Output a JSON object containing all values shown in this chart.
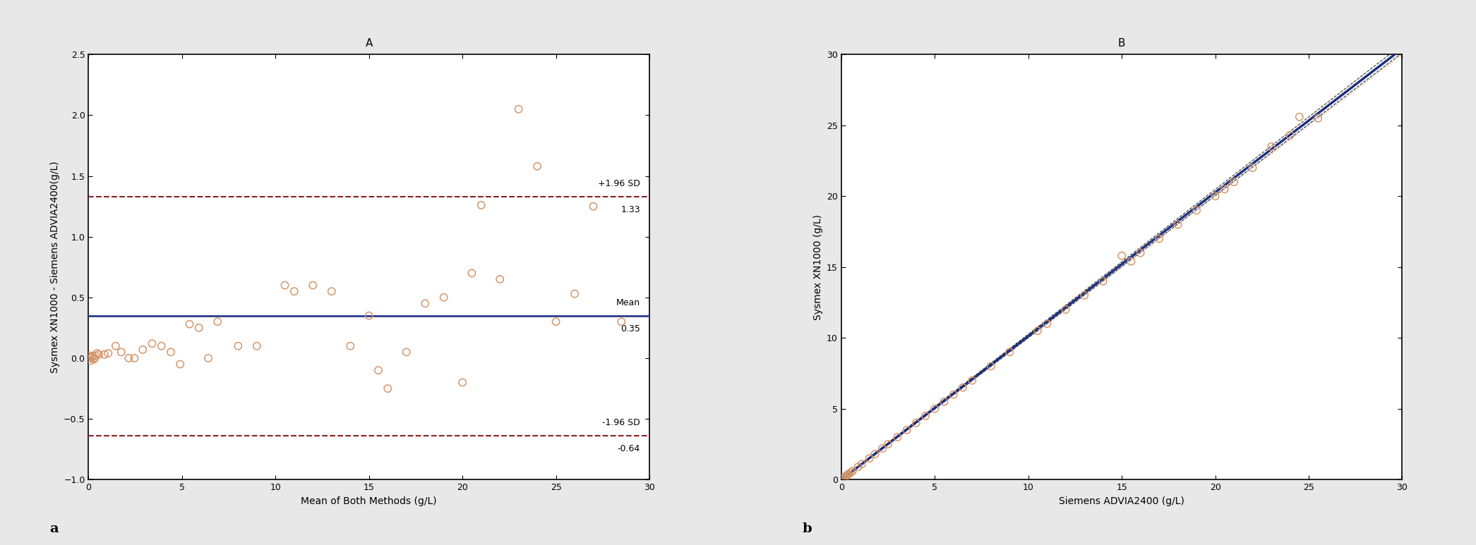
{
  "panel_a_title": "A",
  "panel_b_title": "B",
  "panel_a_xlabel": "Mean of Both Methods (g/L)",
  "panel_a_ylabel": "Sysmex XN1000 - Siemens ADVIA2400(g/L)",
  "panel_b_xlabel": "Siemens ADVIA2400 (g/L)",
  "panel_b_ylabel": "Sysmex XN1000 (g/L)",
  "label_a": "a",
  "label_b": "b",
  "mean_bias": 0.35,
  "upper_loa": 1.33,
  "lower_loa": -0.64,
  "ba_xlim": [
    0,
    30
  ],
  "ba_ylim": [
    -1.0,
    2.5
  ],
  "reg_xlim": [
    0,
    30
  ],
  "reg_ylim": [
    0,
    30
  ],
  "ba_xticks": [
    0,
    5,
    10,
    15,
    20,
    25,
    30
  ],
  "ba_yticks": [
    -1.0,
    -0.5,
    0.0,
    0.5,
    1.0,
    1.5,
    2.0,
    2.5
  ],
  "reg_xticks": [
    0,
    5,
    10,
    15,
    20,
    25,
    30
  ],
  "reg_yticks": [
    0,
    5,
    10,
    15,
    20,
    25,
    30
  ],
  "dot_edgecolor": "#D4956A",
  "mean_line_color": "#2B3A8C",
  "loa_line_color": "#8B2020",
  "regression_line_color": "#1E3080",
  "identity_line_color": "#D4956A",
  "ci_line_color": "#333333",
  "background_color": "#FFFFFF",
  "figure_bg": "#E8E8E8",
  "ba_points_x": [
    0.05,
    0.08,
    0.12,
    0.18,
    0.22,
    0.28,
    0.32,
    0.38,
    0.45,
    0.55,
    0.85,
    1.05,
    1.45,
    1.75,
    2.15,
    2.45,
    2.9,
    3.4,
    3.9,
    4.4,
    4.9,
    5.4,
    5.9,
    6.4,
    6.9,
    8.0,
    9.0,
    10.5,
    11.0,
    12.0,
    13.0,
    14.0,
    15.0,
    15.5,
    16.0,
    17.0,
    18.0,
    19.0,
    20.0,
    20.5,
    21.0,
    22.0,
    23.0,
    24.0,
    25.0,
    26.0,
    27.0,
    28.5
  ],
  "ba_points_y": [
    0.02,
    0.0,
    -0.02,
    0.01,
    0.02,
    -0.01,
    0.0,
    0.02,
    0.04,
    0.03,
    0.03,
    0.04,
    0.1,
    0.05,
    0.0,
    0.0,
    0.07,
    0.12,
    0.1,
    0.05,
    -0.05,
    0.28,
    0.25,
    0.0,
    0.3,
    0.1,
    0.1,
    0.6,
    0.55,
    0.6,
    0.55,
    0.1,
    0.35,
    -0.1,
    -0.25,
    0.05,
    0.45,
    0.5,
    -0.2,
    0.7,
    1.26,
    0.65,
    2.05,
    1.58,
    0.3,
    0.53,
    1.25,
    0.3
  ],
  "reg_slope": 1.014,
  "reg_intercept": -0.01,
  "reg_ci_upper_slope": 1.022,
  "reg_ci_upper_intercept": 0.04,
  "reg_ci_lower_slope": 1.006,
  "reg_ci_lower_intercept": -0.06,
  "reg_points_x": [
    0.05,
    0.1,
    0.15,
    0.2,
    0.25,
    0.3,
    0.35,
    0.4,
    0.5,
    0.6,
    0.9,
    1.1,
    1.5,
    1.8,
    2.2,
    2.5,
    3.0,
    3.5,
    4.0,
    4.5,
    5.0,
    5.5,
    6.0,
    6.5,
    7.0,
    8.0,
    9.0,
    10.5,
    11.0,
    12.0,
    13.0,
    14.0,
    15.0,
    15.5,
    16.0,
    17.0,
    18.0,
    19.0,
    20.0,
    20.5,
    21.0,
    22.0,
    23.0,
    24.0,
    24.5,
    25.5
  ],
  "reg_points_y": [
    0.05,
    0.1,
    0.15,
    0.2,
    0.25,
    0.3,
    0.35,
    0.4,
    0.5,
    0.6,
    0.9,
    1.1,
    1.5,
    1.8,
    2.2,
    2.5,
    3.0,
    3.5,
    4.0,
    4.5,
    5.0,
    5.5,
    6.0,
    6.5,
    7.0,
    8.0,
    9.0,
    10.5,
    11.0,
    12.0,
    13.0,
    14.0,
    15.8,
    15.4,
    16.0,
    17.0,
    18.0,
    19.0,
    20.0,
    20.5,
    21.0,
    22.0,
    23.5,
    24.3,
    25.6,
    25.5
  ],
  "axes_linewidth": 1.2,
  "font_size_label": 10,
  "font_size_tick": 9,
  "font_size_title": 11,
  "font_size_annotation": 9,
  "font_size_panel_label": 14
}
